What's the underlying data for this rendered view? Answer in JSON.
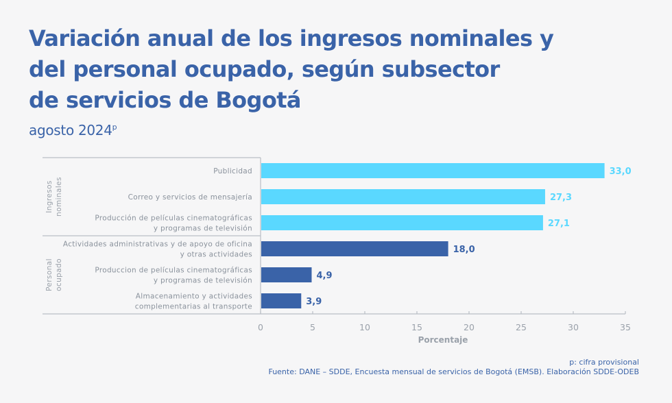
{
  "header": {
    "title_lines": [
      "Variación anual de los ingresos nominales y",
      "del personal ocupado, según subsector",
      "de servicios de Bogotá"
    ],
    "subtitle": "agosto 2024",
    "subtitle_sup": "p"
  },
  "colors": {
    "ingresos": "#5ad8ff",
    "personal": "#3a63a8",
    "title": "#3a63a8",
    "axis": "#b9bec5"
  },
  "chart_data": {
    "type": "bar",
    "orientation": "horizontal",
    "title": "Variación anual de los ingresos nominales y del personal ocupado, según subsector de servicios de Bogotá",
    "subtitle": "agosto 2024p",
    "xlabel": "Porcentaje",
    "ylabel": "",
    "xlim": [
      0,
      35
    ],
    "xticks": [
      0,
      5,
      10,
      15,
      20,
      25,
      30,
      35
    ],
    "grid": false,
    "groups": [
      {
        "name": "Ingresos nominales",
        "label_lines": [
          "Ingresos",
          "nominales"
        ],
        "color": "#5ad8ff",
        "label_color": "#5ad8ff",
        "items": [
          {
            "category": "Publicidad",
            "lines": [
              "Publicidad"
            ],
            "value": 33.0,
            "label": "33,0"
          },
          {
            "category": "Correo y servicios de mensajería",
            "lines": [
              "Correo y servicios de mensajería"
            ],
            "value": 27.3,
            "label": "27,3"
          },
          {
            "category": "Producción de películas cinematográficas y programas de televisión",
            "lines": [
              "Producción de películas cinematográficas",
              "y programas de televisión"
            ],
            "value": 27.1,
            "label": "27,1"
          }
        ]
      },
      {
        "name": "Personal ocupado",
        "label_lines": [
          "Personal",
          "ocupado"
        ],
        "color": "#3a63a8",
        "label_color": "#3a63a8",
        "items": [
          {
            "category": "Actividades administrativas y de apoyo de oficina y otras actividades",
            "lines": [
              "Actividades administrativas y de apoyo de oficina",
              "y otras actividades"
            ],
            "value": 18.0,
            "label": "18,0"
          },
          {
            "category": "Produccion de películas cinematográficas y programas de televisión",
            "lines": [
              "Produccion de películas cinematográficas",
              "y programas de televisión"
            ],
            "value": 4.9,
            "label": "4,9"
          },
          {
            "category": "Almacenamiento y actividades complementarias al transporte",
            "lines": [
              "Almacenamiento y actividades",
              "complementarias al transporte"
            ],
            "value": 3.9,
            "label": "3,9"
          }
        ]
      }
    ]
  },
  "footer": {
    "note": "p: cifra provisional",
    "source": "Fuente: DANE – SDDE, Encuesta mensual de servicios de Bogotá (EMSB). Elaboración SDDE-ODEB"
  }
}
